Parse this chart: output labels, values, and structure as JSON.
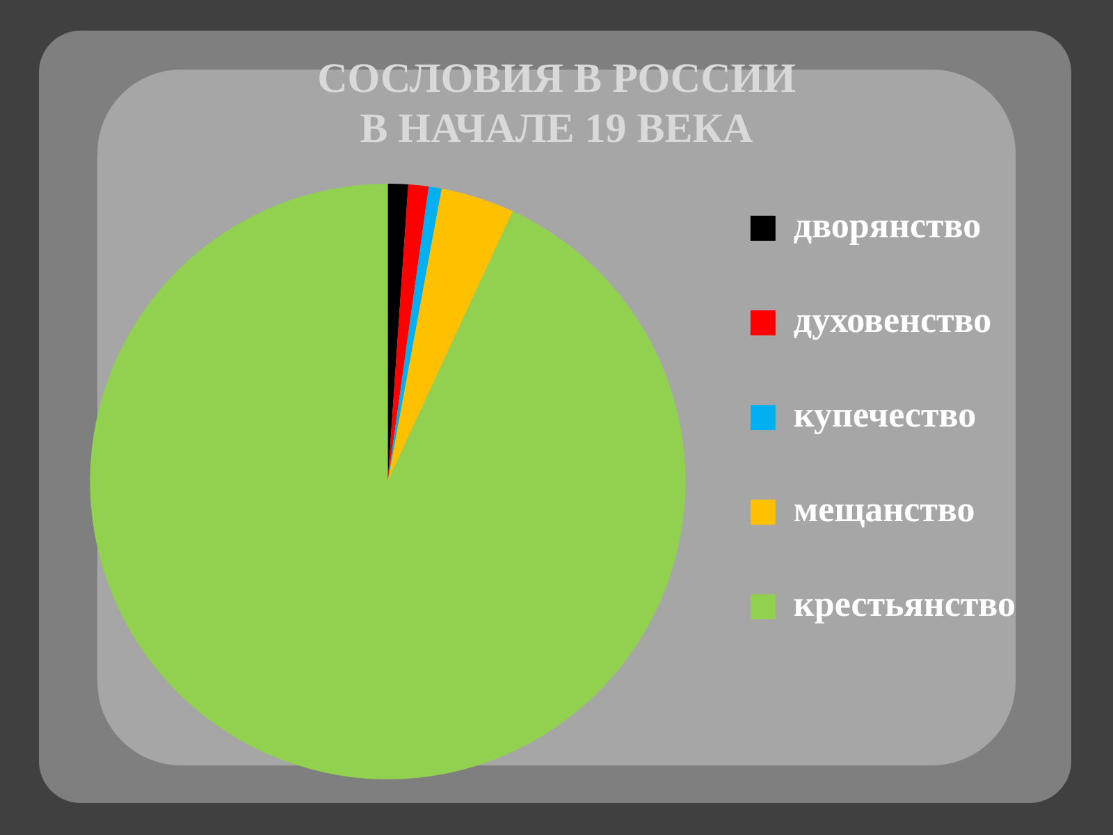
{
  "chart_data": {
    "type": "pie",
    "title": [
      "СОСЛОВИЯ В РОССИИ",
      "В НАЧАЛЕ 19 ВЕКА"
    ],
    "categories": [
      "дворянство",
      "духовенство",
      "купечество",
      "мещанство",
      "крестьянство"
    ],
    "values": [
      1.1,
      1.1,
      0.7,
      4.0,
      93.1
    ],
    "colors": [
      "#000000",
      "#ff0000",
      "#00b0f0",
      "#ffc000",
      "#92d050"
    ],
    "legend": "right"
  }
}
